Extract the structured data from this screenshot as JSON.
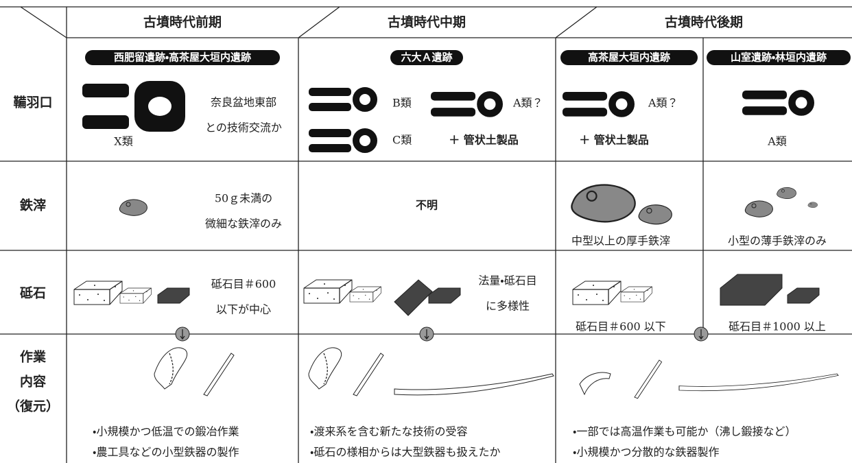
{
  "periods": [
    "古墳時代前期",
    "古墳時代中期",
    "古墳時代後期"
  ],
  "sites": [
    "西肥留遺跡・高茶屋大垣内遺跡",
    "六大Ａ遺跡",
    "高茶屋大垣内遺跡",
    "山室遺跡・林垣内遺跡"
  ],
  "rows": {
    "tuyere": {
      "label": "鞴羽口",
      "cells": [
        [
          "X類",
          "奈良盆地東部",
          "との技術交流か"
        ],
        [
          "B類",
          "A類？",
          "C類",
          "＋ 管状土製品"
        ],
        [
          "A類？",
          "＋ 管状土製品"
        ],
        [
          "A類"
        ]
      ]
    },
    "slag": {
      "label": "鉄滓",
      "cells": [
        [
          "50ｇ未満の",
          "微細な鉄滓のみ"
        ],
        [
          "不明"
        ],
        [
          "中型以上の厚手鉄滓"
        ],
        [
          "小型の薄手鉄滓のみ"
        ]
      ]
    },
    "whetstone": {
      "label": "砥石",
      "cells": [
        [
          "砥石目＃600",
          "以下が中心"
        ],
        [
          "法量・砥石目",
          "に多様性"
        ],
        [
          "砥石目＃600 以下"
        ],
        [
          "砥石目＃1000 以上"
        ]
      ]
    },
    "work": {
      "label": [
        "作業",
        "内容",
        "（復元）"
      ],
      "cells": [
        [
          "・小規模かつ低温での鍛冶作業",
          "・農工具などの小型鉄器の製作"
        ],
        [
          "・渡来系を含む新たな技術の受容",
          "・砥石の様相からは大型鉄器も扱えたか"
        ],
        [
          "・一部では高温作業も可能か（沸し鍛接など）",
          "・小規模かつ分散的な鉄器製作"
        ]
      ]
    }
  }
}
